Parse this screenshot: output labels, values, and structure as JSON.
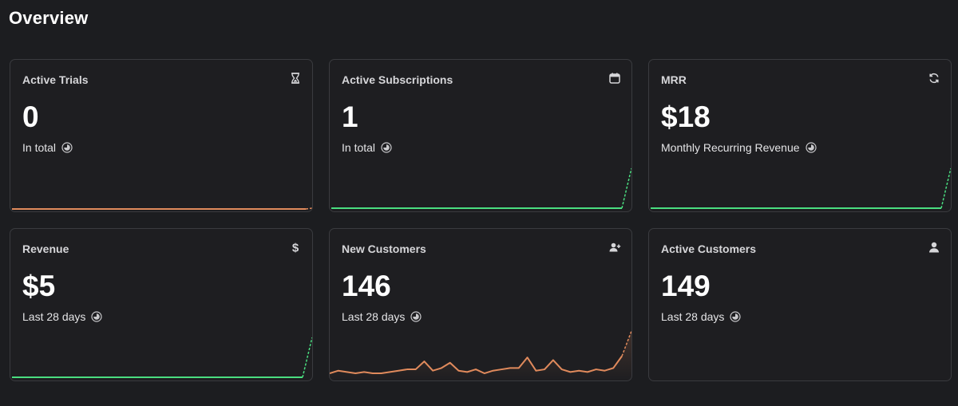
{
  "page": {
    "title": "Overview"
  },
  "cards": [
    {
      "id": "active-trials",
      "title": "Active Trials",
      "value": "0",
      "subtitle": "In total",
      "icon": "hourglass-icon",
      "trend_color": "#e08a5c"
    },
    {
      "id": "active-subscriptions",
      "title": "Active Subscriptions",
      "value": "1",
      "subtitle": "In total",
      "icon": "calendar-icon",
      "trend_color": "#4ade80"
    },
    {
      "id": "mrr",
      "title": "MRR",
      "value": "$18",
      "subtitle": "Monthly Recurring Revenue",
      "icon": "recurring-icon",
      "trend_color": "#4ade80"
    },
    {
      "id": "revenue",
      "title": "Revenue",
      "value": "$5",
      "subtitle": "Last 28 days",
      "icon": "dollar-icon",
      "trend_color": "#4ade80"
    },
    {
      "id": "new-customers",
      "title": "New Customers",
      "value": "146",
      "subtitle": "Last 28 days",
      "icon": "user-plus-icon",
      "trend_color": "#e08a5c",
      "trend_values": [
        3,
        5,
        4,
        3,
        4,
        3,
        3,
        4,
        5,
        6,
        6,
        12,
        5,
        7,
        11,
        5,
        4,
        6,
        3,
        5,
        6,
        7,
        7,
        15,
        5,
        6,
        13,
        6,
        4,
        5,
        4,
        6,
        5,
        7,
        16,
        35
      ]
    },
    {
      "id": "active-customers",
      "title": "Active Customers",
      "value": "149",
      "subtitle": "Last 28 days",
      "icon": "user-icon",
      "trend_color": "#4ade80"
    }
  ]
}
